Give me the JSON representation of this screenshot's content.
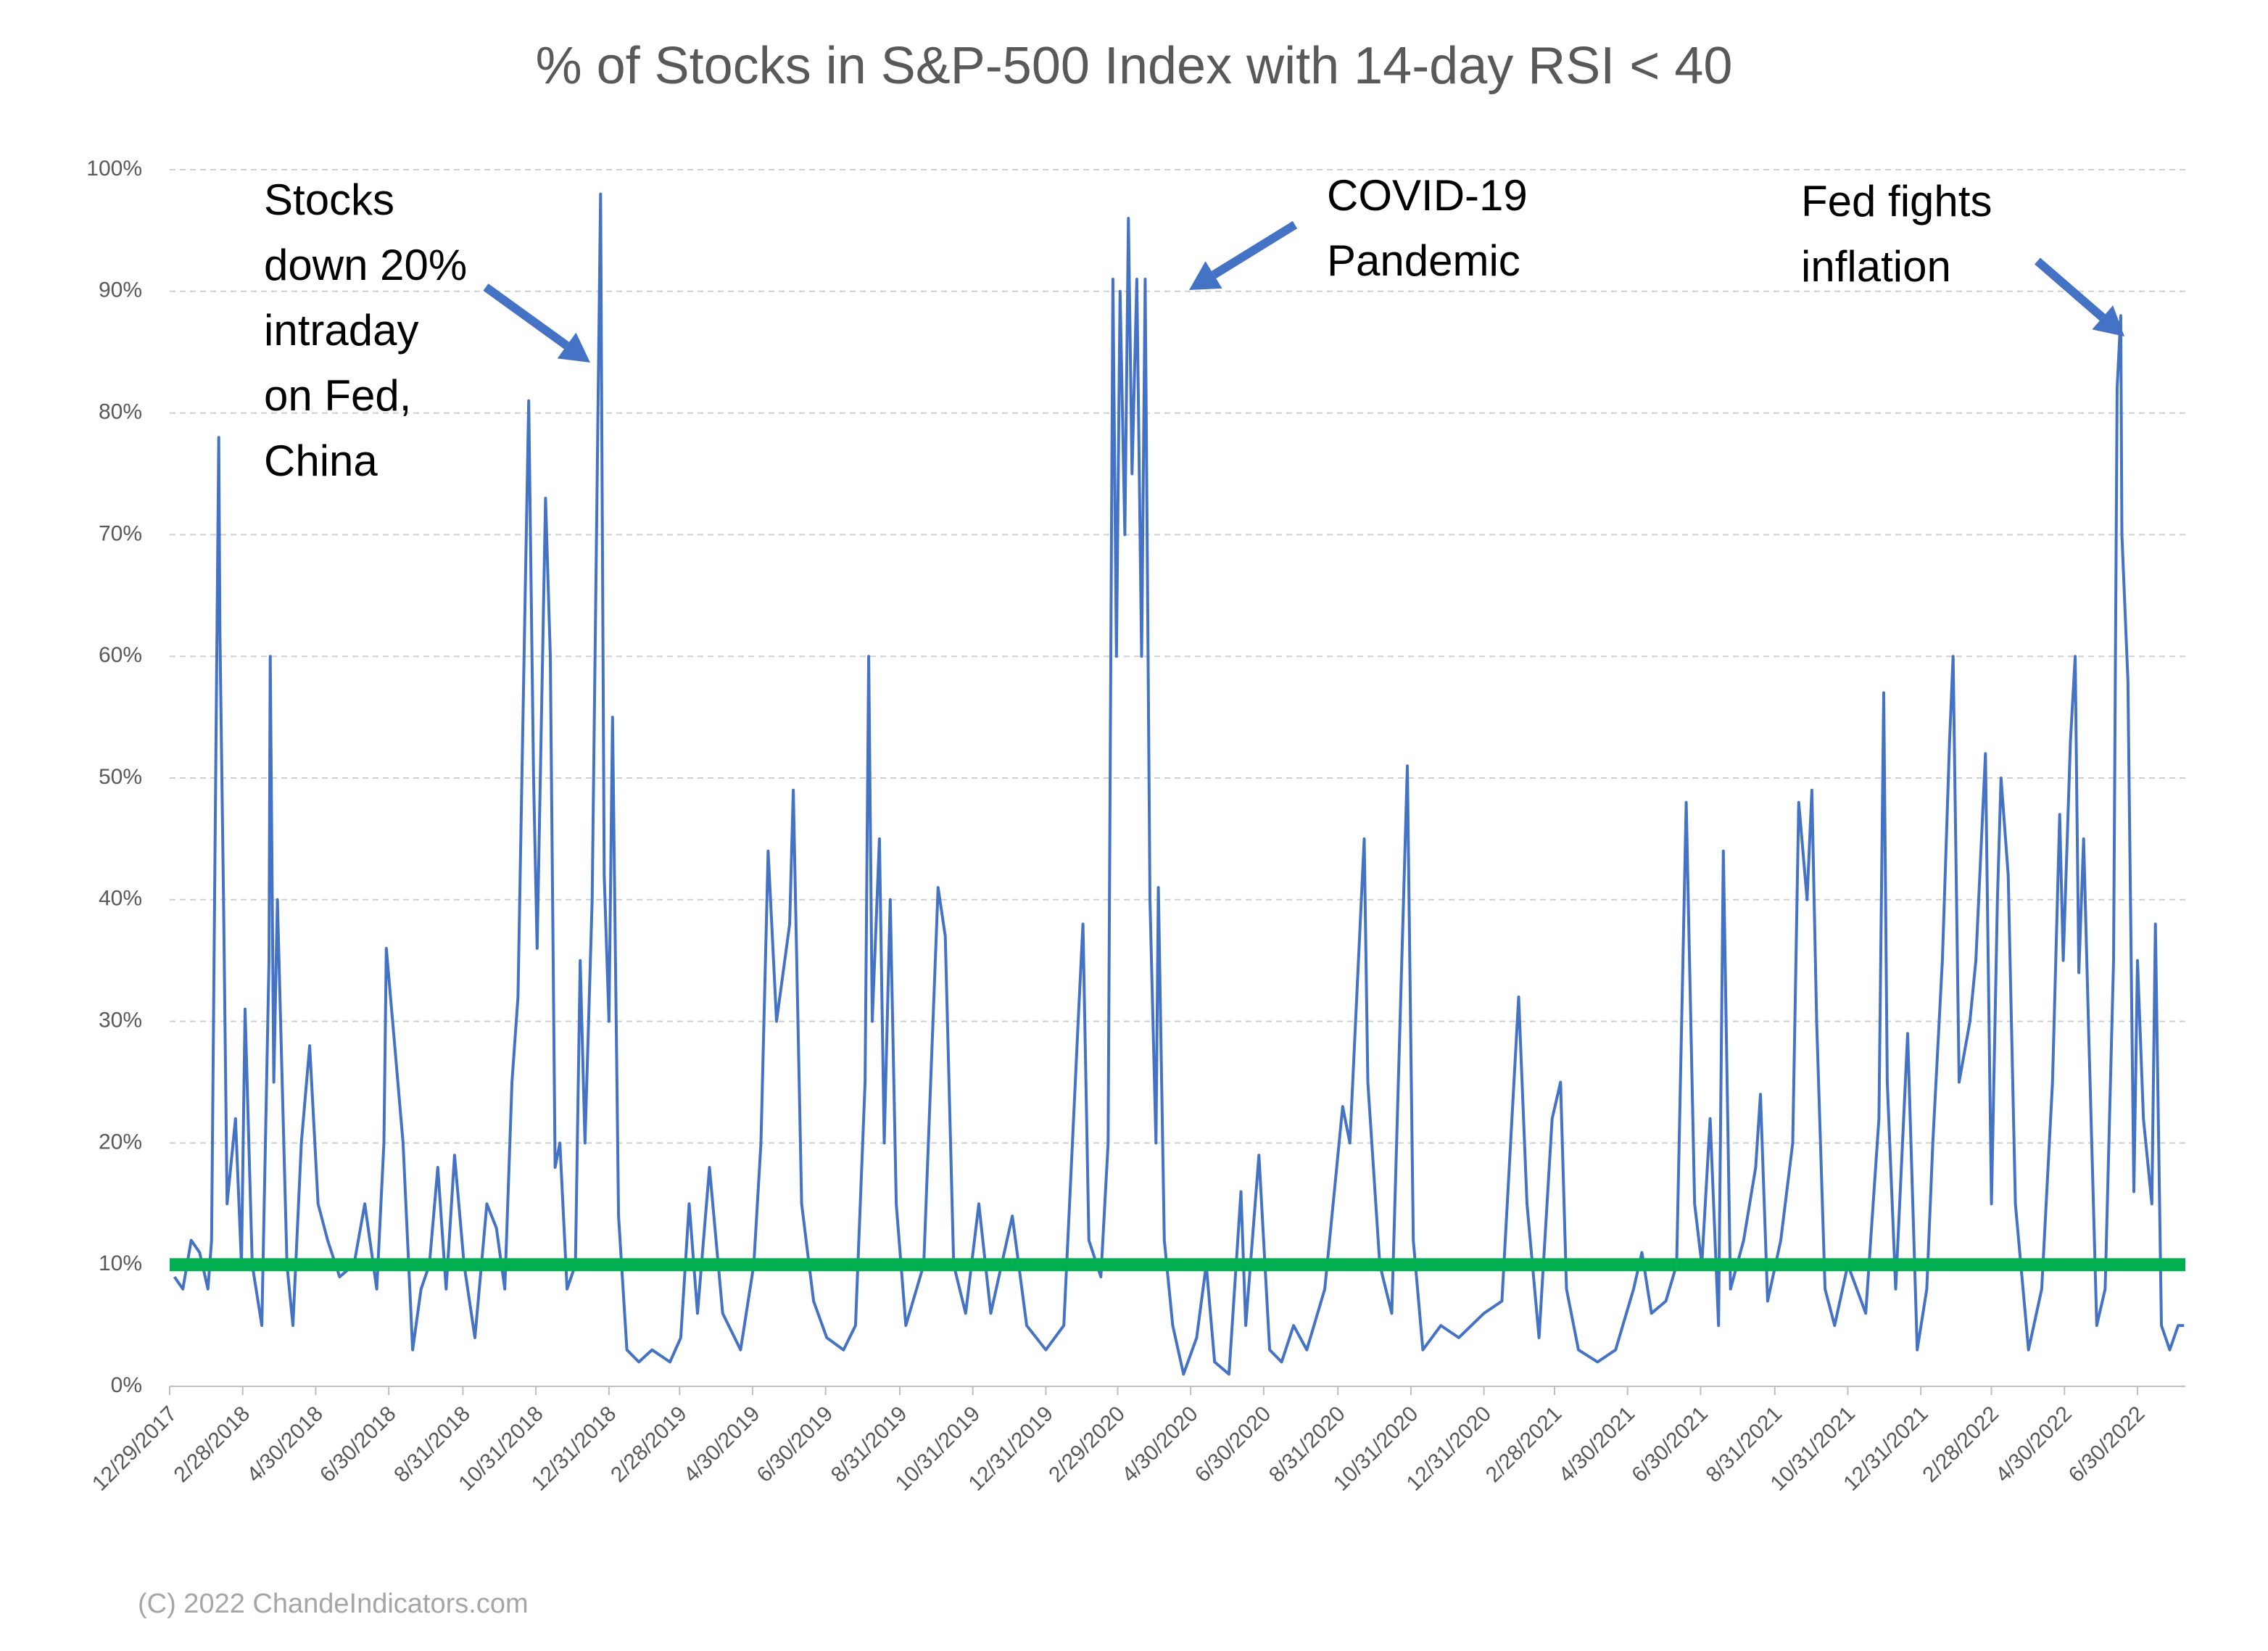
{
  "chart_data": {
    "type": "line",
    "title": "% of Stocks in S&P-500 Index with 14-day RSI < 40",
    "credit": "(C) 2022 ChandeIndicators.com",
    "annotations": [
      {
        "lines": [
          "Stocks",
          "down 20%",
          "intraday",
          "on Fed,",
          "China"
        ]
      },
      {
        "lines": [
          "COVID-19",
          "Pandemic"
        ]
      },
      {
        "lines": [
          "Fed fights",
          "inflation"
        ]
      }
    ],
    "xlim": [
      "12/29/2017",
      "8/9/2022"
    ],
    "xticks": [
      "12/29/2017",
      "2/28/2018",
      "4/30/2018",
      "6/30/2018",
      "8/31/2018",
      "10/31/2018",
      "12/31/2018",
      "2/28/2019",
      "4/30/2019",
      "6/30/2019",
      "8/31/2019",
      "10/31/2019",
      "12/31/2019",
      "2/29/2020",
      "4/30/2020",
      "6/30/2020",
      "8/31/2020",
      "10/31/2020",
      "12/31/2020",
      "2/28/2021",
      "4/30/2021",
      "6/30/2021",
      "8/31/2021",
      "10/31/2021",
      "12/31/2021",
      "2/28/2022",
      "4/30/2022",
      "6/30/2022"
    ],
    "ylim": [
      0,
      100
    ],
    "yticks": [
      {
        "value": 0,
        "label": "0%"
      },
      {
        "value": 10,
        "label": "10%"
      },
      {
        "value": 20,
        "label": "20%"
      },
      {
        "value": 30,
        "label": "30%"
      },
      {
        "value": 40,
        "label": "40%"
      },
      {
        "value": 50,
        "label": "50%"
      },
      {
        "value": 60,
        "label": "60%"
      },
      {
        "value": 70,
        "label": "70%"
      },
      {
        "value": 80,
        "label": "80%"
      },
      {
        "value": 90,
        "label": "90%"
      },
      {
        "value": 100,
        "label": "100%"
      }
    ],
    "grid": true,
    "threshold": {
      "value": 10,
      "color": "#00b050"
    },
    "series": [
      {
        "color": "#4472c4",
        "x": [
          "1/2/2018",
          "1/9/2018",
          "1/16/2018",
          "1/23/2018",
          "1/30/2018",
          "2/2/2018",
          "2/5/2018",
          "2/8/2018",
          "2/9/2018",
          "2/12/2018",
          "2/15/2018",
          "2/22/2018",
          "2/27/2018",
          "3/2/2018",
          "3/8/2018",
          "3/16/2018",
          "3/22/2018",
          "3/23/2018",
          "3/26/2018",
          "3/29/2018",
          "4/2/2018",
          "4/6/2018",
          "4/11/2018",
          "4/18/2018",
          "4/25/2018",
          "5/2/2018",
          "5/10/2018",
          "5/20/2018",
          "6/1/2018",
          "6/10/2018",
          "6/20/2018",
          "6/26/2018",
          "6/28/2018",
          "7/5/2018",
          "7/12/2018",
          "7/20/2018",
          "7/27/2018",
          "8/3/2018",
          "8/10/2018",
          "8/17/2018",
          "8/24/2018",
          "9/1/2018",
          "9/10/2018",
          "9/20/2018",
          "9/28/2018",
          "10/5/2018",
          "10/11/2018",
          "10/16/2018",
          "10/22/2018",
          "10/25/2018",
          "10/29/2018",
          "11/1/2018",
          "11/8/2018",
          "11/12/2018",
          "11/16/2018",
          "11/20/2018",
          "11/26/2018",
          "12/3/2018",
          "12/7/2018",
          "12/11/2018",
          "12/14/2018",
          "12/17/2018",
          "12/20/2018",
          "12/24/2018",
          "12/27/2018",
          "12/31/2018",
          "1/3/2019",
          "1/8/2019",
          "1/15/2019",
          "1/25/2019",
          "2/5/2019",
          "2/20/2019",
          "3/1/2019",
          "3/8/2019",
          "3/15/2019",
          "3/25/2019",
          "4/5/2019",
          "4/20/2019",
          "5/1/2019",
          "5/7/2019",
          "5/13/2019",
          "5/20/2019",
          "5/31/2019",
          "6/3/2019",
          "6/10/2019",
          "6/20/2019",
          "7/1/2019",
          "7/15/2019",
          "7/25/2019",
          "8/2/2019",
          "8/5/2019",
          "8/8/2019",
          "8/14/2019",
          "8/18/2019",
          "8/23/2019",
          "8/28/2019",
          "9/5/2019",
          "9/20/2019",
          "10/2/2019",
          "10/8/2019",
          "10/15/2019",
          "10/25/2019",
          "11/5/2019",
          "11/15/2019",
          "12/3/2019",
          "12/15/2019",
          "12/31/2019",
          "1/15/2020",
          "1/27/2020",
          "1/31/2020",
          "2/5/2020",
          "2/15/2020",
          "2/21/2020",
          "2/25/2020",
          "2/28/2020",
          "3/2/2020",
          "3/6/2020",
          "3/9/2020",
          "3/12/2020",
          "3/16/2020",
          "3/20/2020",
          "3/23/2020",
          "3/27/2020",
          "4/1/2020",
          "4/3/2020",
          "4/8/2020",
          "4/15/2020",
          "4/24/2020",
          "5/5/2020",
          "5/13/2020",
          "5/20/2020",
          "6/1/2020",
          "6/11/2020",
          "6/15/2020",
          "6/26/2020",
          "7/5/2020",
          "7/15/2020",
          "7/25/2020",
          "8/5/2020",
          "8/20/2020",
          "9/4/2020",
          "9/10/2020",
          "9/22/2020",
          "9/25/2020",
          "10/5/2020",
          "10/15/2020",
          "10/28/2020",
          "11/2/2020",
          "11/10/2020",
          "11/25/2020",
          "12/10/2020",
          "12/31/2020",
          "1/15/2021",
          "1/29/2021",
          "2/5/2021",
          "2/15/2021",
          "2/26/2021",
          "3/5/2021",
          "3/10/2021",
          "3/20/2021",
          "4/5/2021",
          "4/20/2021",
          "5/5/2021",
          "5/12/2021",
          "5/20/2021",
          "6/1/2021",
          "6/10/2021",
          "6/18/2021",
          "6/25/2021",
          "7/1/2021",
          "7/8/2021",
          "7/15/2021",
          "7/19/2021",
          "7/25/2021",
          "8/5/2021",
          "8/15/2021",
          "8/19/2021",
          "8/25/2021",
          "9/5/2021",
          "9/15/2021",
          "9/20/2021",
          "9/27/2021",
          "10/1/2021",
          "10/5/2021",
          "10/12/2021",
          "10/20/2021",
          "10/31/2021",
          "11/15/2021",
          "11/26/2021",
          "11/30/2021",
          "12/3/2021",
          "12/10/2021",
          "12/20/2021",
          "12/28/2021",
          "1/5/2022",
          "1/10/2022",
          "1/18/2022",
          "1/24/2022",
          "1/27/2022",
          "2/1/2022",
          "2/10/2022",
          "2/15/2022",
          "2/23/2022",
          "2/28/2022",
          "3/5/2022",
          "3/8/2022",
          "3/14/2022",
          "3/20/2022",
          "3/31/2022",
          "4/11/2022",
          "4/20/2022",
          "4/26/2022",
          "4/29/2022",
          "5/5/2022",
          "5/9/2022",
          "5/12/2022",
          "5/16/2022",
          "5/20/2022",
          "5/27/2022",
          "6/3/2022",
          "6/10/2022",
          "6/13/2022",
          "6/16/2022",
          "6/17/2022",
          "6/22/2022",
          "6/27/2022",
          "6/30/2022",
          "7/5/2022",
          "7/12/2022",
          "7/15/2022",
          "7/20/2022",
          "7/27/2022",
          "8/3/2022",
          "8/8/2022"
        ],
        "values": [
          9,
          8,
          12,
          11,
          8,
          12,
          45,
          78,
          62,
          40,
          15,
          22,
          10,
          31,
          10,
          5,
          35,
          60,
          25,
          40,
          25,
          10,
          5,
          20,
          28,
          15,
          12,
          9,
          10,
          15,
          8,
          20,
          36,
          28,
          20,
          3,
          8,
          10,
          18,
          8,
          19,
          10,
          4,
          15,
          13,
          8,
          25,
          32,
          65,
          81,
          50,
          36,
          73,
          60,
          18,
          20,
          8,
          10,
          35,
          20,
          30,
          40,
          65,
          98,
          42,
          30,
          55,
          14,
          3,
          2,
          3,
          2,
          4,
          15,
          6,
          18,
          6,
          3,
          10,
          20,
          44,
          30,
          38,
          49,
          15,
          7,
          4,
          3,
          5,
          25,
          60,
          30,
          45,
          20,
          40,
          15,
          5,
          10,
          41,
          37,
          10,
          6,
          15,
          6,
          14,
          5,
          3,
          5,
          30,
          38,
          12,
          9,
          20,
          91,
          60,
          90,
          70,
          96,
          75,
          91,
          60,
          91,
          40,
          20,
          41,
          12,
          5,
          1,
          4,
          10,
          2,
          1,
          16,
          5,
          19,
          3,
          2,
          5,
          3,
          8,
          23,
          20,
          45,
          25,
          10,
          6,
          51,
          12,
          3,
          5,
          4,
          6,
          7,
          32,
          15,
          4,
          22,
          25,
          8,
          3,
          2,
          3,
          8,
          11,
          6,
          7,
          10,
          48,
          15,
          10,
          22,
          5,
          44,
          8,
          12,
          18,
          24,
          7,
          12,
          20,
          48,
          40,
          49,
          30,
          8,
          5,
          10,
          6,
          22,
          57,
          25,
          8,
          29,
          3,
          8,
          20,
          35,
          53,
          60,
          25,
          30,
          35,
          52,
          15,
          40,
          50,
          42,
          15,
          3,
          8,
          25,
          47,
          35,
          53,
          60,
          34,
          45,
          30,
          5,
          8,
          35,
          82,
          88,
          70,
          58,
          16,
          35,
          22,
          15,
          38,
          5,
          3,
          5,
          5
        ]
      }
    ]
  }
}
